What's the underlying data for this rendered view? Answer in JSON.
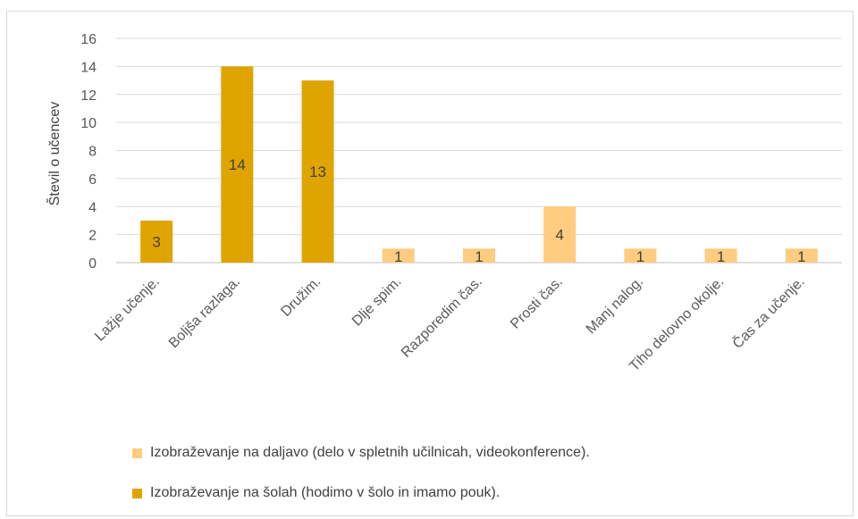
{
  "chart_data": {
    "type": "bar",
    "ylabel": "Števil o učencev",
    "xlabel": "",
    "title": "",
    "ylim": [
      0,
      16
    ],
    "yticks": [
      0,
      2,
      4,
      6,
      8,
      10,
      12,
      14,
      16
    ],
    "grid": true,
    "legend_position": "bottom",
    "categories": [
      "Lažje učenje.",
      "Boljša razlaga.",
      "Družim.",
      "Dlje spim.",
      "Razporedim čas.",
      "Prosti čas.",
      "Manj nalog.",
      "Tiho delovno okolje.",
      "Čas za učenje."
    ],
    "series": [
      {
        "name": "Izobraževanje na daljavo (delo v spletnih učilnicah, videokonference).",
        "color": "#ffcc80",
        "values": [
          null,
          null,
          null,
          1,
          1,
          4,
          1,
          1,
          1
        ]
      },
      {
        "name": "Izobraževanje na šolah (hodimo v šolo in imamo pouk).",
        "color": "#e0a400",
        "values": [
          3,
          14,
          13,
          null,
          null,
          null,
          null,
          null,
          null
        ]
      }
    ]
  }
}
